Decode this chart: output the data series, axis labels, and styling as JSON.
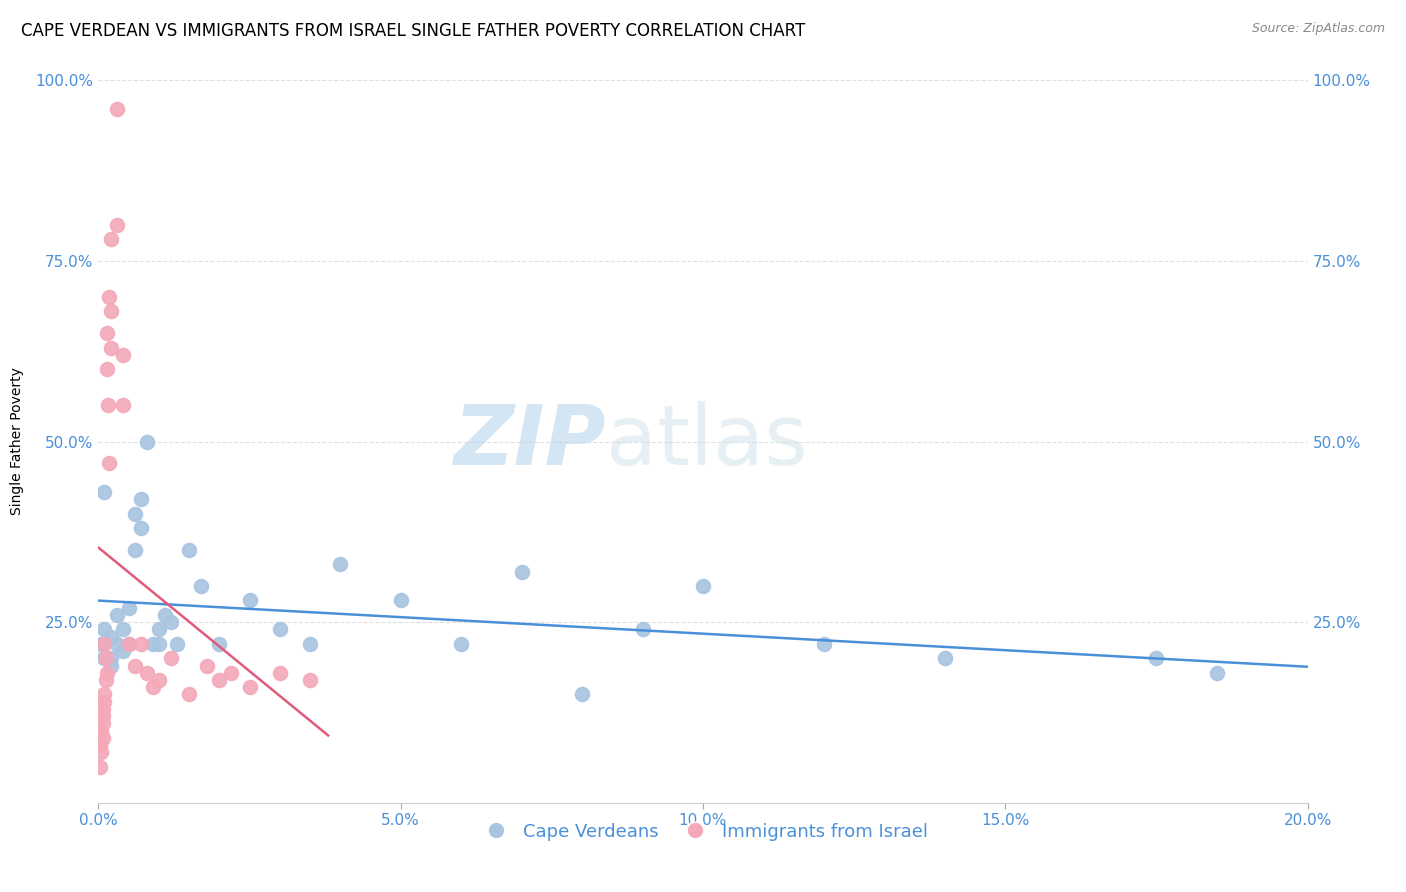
{
  "title": "CAPE VERDEAN VS IMMIGRANTS FROM ISRAEL SINGLE FATHER POVERTY CORRELATION CHART",
  "source": "Source: ZipAtlas.com",
  "xlabel": "",
  "ylabel": "Single Father Poverty",
  "xlim": [
    0.0,
    0.2
  ],
  "ylim": [
    0.0,
    1.0
  ],
  "xtick_labels": [
    "0.0%",
    "5.0%",
    "10.0%",
    "15.0%",
    "20.0%"
  ],
  "xtick_vals": [
    0.0,
    0.05,
    0.1,
    0.15,
    0.2
  ],
  "ytick_vals": [
    0.0,
    0.25,
    0.5,
    0.75,
    1.0
  ],
  "ytick_labels": [
    "",
    "25.0%",
    "50.0%",
    "75.0%",
    "100.0%"
  ],
  "blue_color": "#a8c4e0",
  "pink_color": "#f4a8b8",
  "blue_edge_color": "#7aafd4",
  "pink_edge_color": "#e88aa0",
  "blue_line_color": "#4a90d9",
  "pink_line_color": "#e05a7a",
  "legend_label_blue": "Cape Verdeans",
  "legend_label_pink": "Immigrants from Israel",
  "watermark_zip": "ZIP",
  "watermark_atlas": "atlas",
  "title_fontsize": 12,
  "axis_label_fontsize": 10,
  "tick_fontsize": 11,
  "legend_fontsize": 13,
  "watermark_fontsize_zip": 60,
  "watermark_fontsize_atlas": 60,
  "marker_size": 100,
  "background_color": "#ffffff",
  "grid_color": "#e0e0e0",
  "blue_scatter_x": [
    0.0005,
    0.001,
    0.001,
    0.001,
    0.002,
    0.002,
    0.002,
    0.003,
    0.003,
    0.004,
    0.004,
    0.005,
    0.005,
    0.006,
    0.006,
    0.007,
    0.007,
    0.008,
    0.009,
    0.01,
    0.01,
    0.011,
    0.012,
    0.013,
    0.015,
    0.017,
    0.02,
    0.025,
    0.03,
    0.035,
    0.04,
    0.05,
    0.06,
    0.07,
    0.08,
    0.09,
    0.1,
    0.12,
    0.14,
    0.175,
    0.185
  ],
  "blue_scatter_y": [
    0.22,
    0.43,
    0.24,
    0.2,
    0.23,
    0.2,
    0.19,
    0.22,
    0.26,
    0.21,
    0.24,
    0.22,
    0.27,
    0.35,
    0.4,
    0.38,
    0.42,
    0.5,
    0.22,
    0.24,
    0.22,
    0.26,
    0.25,
    0.22,
    0.35,
    0.3,
    0.22,
    0.28,
    0.24,
    0.22,
    0.33,
    0.28,
    0.22,
    0.32,
    0.15,
    0.24,
    0.3,
    0.22,
    0.2,
    0.2,
    0.18
  ],
  "pink_scatter_x": [
    0.0003,
    0.0003,
    0.0005,
    0.0005,
    0.0007,
    0.0007,
    0.0008,
    0.0008,
    0.001,
    0.001,
    0.001,
    0.0012,
    0.0013,
    0.0014,
    0.0015,
    0.0015,
    0.0016,
    0.0017,
    0.0018,
    0.002,
    0.002,
    0.002,
    0.003,
    0.003,
    0.004,
    0.004,
    0.005,
    0.006,
    0.007,
    0.008,
    0.009,
    0.01,
    0.012,
    0.015,
    0.018,
    0.02,
    0.022,
    0.025,
    0.03,
    0.035
  ],
  "pink_scatter_y": [
    0.05,
    0.08,
    0.1,
    0.07,
    0.12,
    0.09,
    0.13,
    0.11,
    0.14,
    0.15,
    0.22,
    0.17,
    0.2,
    0.18,
    0.6,
    0.65,
    0.55,
    0.47,
    0.7,
    0.68,
    0.63,
    0.78,
    0.8,
    0.96,
    0.55,
    0.62,
    0.22,
    0.19,
    0.22,
    0.18,
    0.16,
    0.17,
    0.2,
    0.15,
    0.19,
    0.17,
    0.18,
    0.16,
    0.18,
    0.17
  ]
}
